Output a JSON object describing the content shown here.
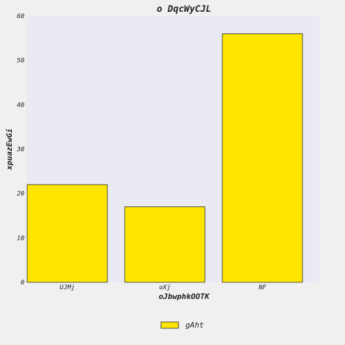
{
  "chart_data": {
    "type": "bar",
    "title": "o DqcWyCJL",
    "xlabel": "oJbwphkOOTK",
    "ylabel": "xpuazEwGi",
    "categories": [
      "UJMj",
      "oXj",
      "NF"
    ],
    "series": [
      {
        "name": "gAht",
        "values": [
          22,
          17,
          56
        ]
      }
    ],
    "ylim": [
      0,
      60
    ],
    "yticks": [
      0,
      10,
      20,
      30,
      40,
      50,
      60
    ],
    "grid": false,
    "legend_position": "bottom-center",
    "colors": {
      "bar_fill": "#ffe600",
      "bar_stroke": "#222222",
      "plot_background": "#eaeaf2",
      "page_background": "#f0f0f0"
    }
  }
}
